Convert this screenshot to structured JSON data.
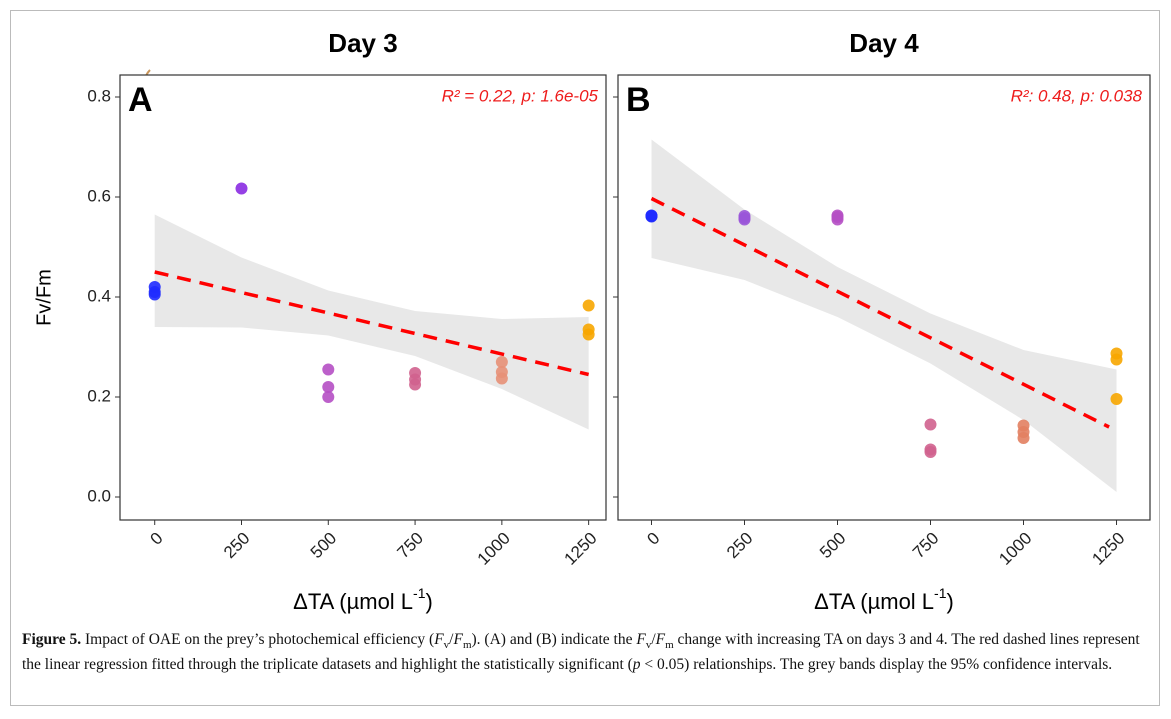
{
  "chart_data": [
    {
      "type": "scatter",
      "title": "Day 3",
      "panel_label": "A",
      "annotation": "R² = 0.22,  p: 1.6e-05",
      "ylabel": "Fv/Fm",
      "xlabel": {
        "text": "ΔTA (µmol L",
        "sup": "-1",
        "end": ")"
      },
      "xlim": [
        -100,
        1300
      ],
      "ylim": [
        -0.046,
        0.844
      ],
      "xticks": [
        0,
        250,
        500,
        750,
        1000,
        1250
      ],
      "yticks": [
        {
          "value": 0,
          "label": "0.0"
        },
        0.2,
        0.4,
        0.6,
        0.8
      ],
      "ytick_labels": true,
      "level_colors": [
        "#1f2bff",
        "#8a2be2",
        "#b54fc4",
        "#d0628e",
        "#e79077",
        "#f7a600"
      ],
      "x": [
        0,
        0,
        0,
        250,
        500,
        500,
        500,
        750,
        750,
        750,
        1000,
        1000,
        1000,
        1250,
        1250,
        1250
      ],
      "values": [
        0.42,
        0.41,
        0.405,
        0.617,
        0.255,
        0.22,
        0.2,
        0.248,
        0.235,
        0.225,
        0.27,
        0.25,
        0.237,
        0.383,
        0.335,
        0.325
      ],
      "fit": {
        "x": [
          0,
          1250
        ],
        "values": [
          0.45,
          0.245
        ],
        "color": "#ff0000"
      },
      "band": {
        "x": [
          0,
          250,
          500,
          750,
          1000,
          1250
        ],
        "upper": [
          0.565,
          0.479,
          0.413,
          0.372,
          0.356,
          0.36
        ],
        "lower": [
          0.34,
          0.339,
          0.323,
          0.282,
          0.216,
          0.135
        ]
      }
    },
    {
      "type": "scatter",
      "title": "Day 4",
      "panel_label": "B",
      "annotation": "R²: 0.48,  p: 0.038",
      "xlabel": {
        "text": "ΔTA (µmol L",
        "sup": "-1",
        "end": ")"
      },
      "xlim": [
        -90,
        1340
      ],
      "ylim": [
        -0.046,
        0.844
      ],
      "xticks": [
        0,
        250,
        500,
        750,
        1000,
        1250
      ],
      "yticks": [
        0,
        0.2,
        0.4,
        0.6,
        0.8
      ],
      "ytick_labels": false,
      "level_colors": [
        "#1f2bff",
        "#9a55d8",
        "#b54fc4",
        "#d0628e",
        "#e28060",
        "#f7a600"
      ],
      "x": [
        0,
        0,
        0,
        250,
        250,
        250,
        500,
        500,
        500,
        750,
        750,
        750,
        1000,
        1000,
        1000,
        1250,
        1250,
        1250
      ],
      "values": [
        0.563,
        0.562,
        0.561,
        0.562,
        0.558,
        0.555,
        0.563,
        0.56,
        0.555,
        0.145,
        0.095,
        0.09,
        0.143,
        0.13,
        0.118,
        0.287,
        0.275,
        0.196
      ],
      "fit": {
        "x": [
          0,
          1230
        ],
        "values": [
          0.597,
          0.14
        ],
        "color": "#ff0000"
      },
      "band": {
        "x": [
          0,
          250,
          500,
          750,
          1000,
          1250
        ],
        "upper": [
          0.715,
          0.575,
          0.46,
          0.367,
          0.294,
          0.255
        ],
        "lower": [
          0.478,
          0.434,
          0.36,
          0.267,
          0.154,
          0.01
        ]
      }
    }
  ],
  "caption": [
    {
      "text": "Figure 5.",
      "style": "b"
    },
    {
      "text": " Impact of OAE on the prey’s photochemical efficiency ("
    },
    {
      "text": "F",
      "style": "i"
    },
    {
      "text": "v",
      "style": "sub"
    },
    {
      "text": "/"
    },
    {
      "text": "F",
      "style": "i"
    },
    {
      "text": "m",
      "style": "sub"
    },
    {
      "text": "). (A) and (B) indicate the "
    },
    {
      "text": "F",
      "style": "i"
    },
    {
      "text": "v",
      "style": "sub"
    },
    {
      "text": "/"
    },
    {
      "text": "F",
      "style": "i"
    },
    {
      "text": "m",
      "style": "sub"
    },
    {
      "text": " change with increasing TA on days 3 and 4. The red dashed lines represent the linear regression fitted through the triplicate datasets and highlight the statistically significant ("
    },
    {
      "text": "p",
      "style": "i"
    },
    {
      "text": " < 0.05) relationships. The grey bands display the 95% confidence intervals."
    }
  ]
}
